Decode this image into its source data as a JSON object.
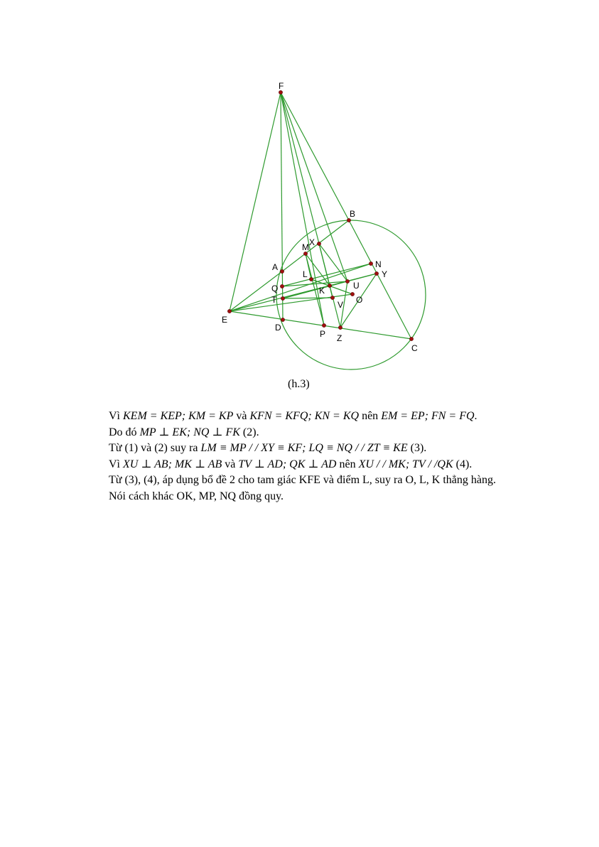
{
  "figure": {
    "caption": "(h.3)",
    "point_labels": {
      "F": "F",
      "B": "B",
      "X": "X",
      "M": "M",
      "N": "N",
      "Y": "Y",
      "A": "A",
      "L": "L",
      "U": "U",
      "Q": "Q",
      "K": "K",
      "O": "O",
      "T": "T",
      "V": "V",
      "E": "E",
      "D": "D",
      "P": "P",
      "Z": "Z",
      "C": "C"
    }
  },
  "text": {
    "line1": {
      "w1": "Vì",
      "m1": "KEM = KEP; KM = KP",
      "w2": "và",
      "m2": "KFN = KFQ; KN = KQ",
      "w3": "nên",
      "m3": "EM = EP; FN = FQ",
      "end": "."
    },
    "line2": {
      "w1": "Do đó",
      "m1": "MP ⊥ EK; NQ ⊥ FK",
      "w2": "(2)."
    },
    "line3": {
      "w1": "Từ (1) và (2) suy ra",
      "m1": "LM ≡ MP / / XY ≡ KF; LQ ≡ NQ / / ZT ≡ KE",
      "w2": "(3)."
    },
    "line4": {
      "w1": "Vì",
      "m1": "XU ⊥ AB; MK ⊥ AB",
      "w2": "và",
      "m2": "TV ⊥ AD; QK ⊥ AD",
      "w3": "nên",
      "m3": "XU / / MK; TV / /QK",
      "w4": "(4)."
    },
    "line5": "Từ (3), (4), áp dụng bổ đề 2 cho tam giác KFE và điểm L, suy ra O, L, K thẳng hàng.",
    "line6": "Nói cách khác OK, MP, NQ đồng quy."
  }
}
